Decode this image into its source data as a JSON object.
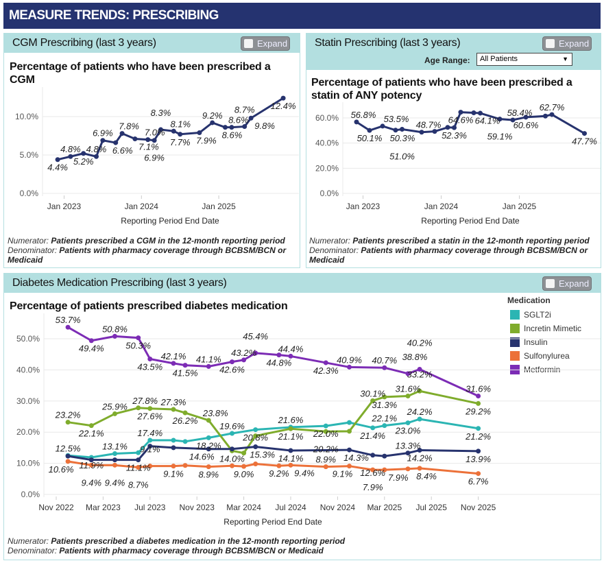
{
  "header": {
    "title": "MEASURE TRENDS: PRESCRIBING"
  },
  "cgm": {
    "panel_title": "CGM Prescribing (last 3 years)",
    "expand_label": "Expand",
    "chart_title": "Percentage of patients who have been prescribed a CGM",
    "footer": {
      "numerator_label": "Numerator:",
      "numerator_text": "Patients prescribed a CGM in the 12-month reporting period",
      "denominator_label": "Denominator:",
      "denominator_text": "Patients with pharmacy coverage through BCBSM/BCN or Medicaid"
    }
  },
  "statin": {
    "panel_title": "Statin Prescribing (last 3 years)",
    "expand_label": "Expand",
    "age_range_label": "Age Range:",
    "age_range_value": "All Patients",
    "chart_title": "Percentage of patients who have been prescribed a statin of ANY potency",
    "footer": {
      "numerator_label": "Numerator:",
      "numerator_text": "Patients prescribed a statin in the 12-month reporting period",
      "denominator_label": "Denominator:",
      "denominator_text": "Patients with pharmacy coverage through BCBSM/BCN or Medicaid"
    }
  },
  "diabetes": {
    "panel_title": "Diabetes Medication Prescribing (last 3 years)",
    "expand_label": "Expand",
    "chart_title": "Percentage of patients prescribed diabetes medication",
    "legend_title": "Medication",
    "footer": {
      "numerator_label": "Numerator:",
      "numerator_text": "Patients prescribed a diabetes medication in the 12-month reporting period",
      "denominator_label": "Denominator:",
      "denominator_text": "Patients with pharmacy coverage through BCBSM/BCN or Medicaid"
    }
  },
  "chart_data": [
    {
      "type": "line",
      "title": "Percentage of patients who have been prescribed a CGM",
      "xlabel": "Reporting Period End Date",
      "ylabel": "",
      "ylim": [
        0,
        13
      ],
      "grid": true,
      "y_ticks": [
        {
          "v": 0,
          "label": "0.0%"
        },
        {
          "v": 5,
          "label": "5.0%"
        },
        {
          "v": 10,
          "label": "10.0%"
        }
      ],
      "x_ticks": [
        {
          "date": "2023-01",
          "label": "Jan 2023"
        },
        {
          "date": "2024-01",
          "label": "Jan 2024"
        },
        {
          "date": "2025-01",
          "label": "Jan 2025"
        }
      ],
      "x": [
        "2022-12",
        "2023-02",
        "2023-04",
        "2023-06",
        "2023-07",
        "2023-09",
        "2023-10",
        "2023-12",
        "2024-02",
        "2024-03",
        "2024-04",
        "2024-06",
        "2024-07",
        "2024-10",
        "2024-12",
        "2025-02",
        "2025-03",
        "2025-05",
        "2025-06",
        "2025-11"
      ],
      "series": [
        {
          "color": "#27336e",
          "values": [
            4.4,
            4.8,
            5.2,
            4.8,
            6.9,
            6.6,
            7.8,
            7.1,
            7.0,
            6.9,
            8.3,
            8.1,
            7.7,
            7.9,
            9.2,
            8.6,
            8.6,
            8.7,
            9.8,
            12.4
          ],
          "labels": [
            "4.4%",
            "4.8%",
            "5.2%",
            "4.8%",
            "6.9%",
            "6.6%",
            "7.8%",
            "7.1%",
            "7.0%",
            "6.9%",
            "8.3%",
            "8.1%",
            "7.7%",
            "7.9%",
            "9.2%",
            "8.6%",
            "8.6%",
            "8.7%",
            "9.8%",
            "12.4%"
          ]
        }
      ]
    },
    {
      "type": "line",
      "title": "Percentage of patients who have been prescribed a statin of ANY potency",
      "xlabel": "Reporting Period End Date",
      "ylabel": "",
      "ylim": [
        0,
        68
      ],
      "grid": true,
      "y_ticks": [
        {
          "v": 0,
          "label": "0.0%"
        },
        {
          "v": 20,
          "label": "20.0%"
        },
        {
          "v": 40,
          "label": "40.0%"
        },
        {
          "v": 60,
          "label": "60.0%"
        }
      ],
      "x_ticks": [
        {
          "date": "2023-01",
          "label": "Jan 2023"
        },
        {
          "date": "2024-01",
          "label": "Jan 2024"
        },
        {
          "date": "2025-01",
          "label": "Jan 2025"
        }
      ],
      "x": [
        "2022-12",
        "2023-02",
        "2023-04",
        "2023-06",
        "2023-07",
        "2023-09",
        "2023-10",
        "2023-12",
        "2024-02",
        "2024-03",
        "2024-04",
        "2024-06",
        "2024-07",
        "2024-10",
        "2024-12",
        "2025-02",
        "2025-03",
        "2025-05",
        "2025-06",
        "2025-11"
      ],
      "series": [
        {
          "color": "#27336e",
          "values": [
            56.8,
            50.1,
            53.5,
            50.3,
            51.0,
            null,
            48.7,
            49.3,
            52.5,
            52.3,
            64.6,
            64.1,
            63.8,
            59.1,
            58.4,
            60.6,
            null,
            61.5,
            62.7,
            47.7
          ],
          "labels": [
            "56.8%",
            "50.1%",
            "53.5%",
            "50.3%",
            "51.0%",
            "",
            "48.7%",
            "",
            "",
            "52.3%",
            "64.6%",
            "64.1%",
            "",
            "59.1%",
            "58.4%",
            "60.6%",
            "",
            "",
            "62.7%",
            "47.7%"
          ]
        }
      ]
    },
    {
      "type": "line",
      "title": "Percentage of patients prescribed diabetes medication",
      "xlabel": "Reporting Period End Date",
      "ylabel": "",
      "ylim": [
        0,
        56
      ],
      "grid": true,
      "legend": "right",
      "y_ticks": [
        {
          "v": 0,
          "label": "0.0%"
        },
        {
          "v": 10,
          "label": "10.0%"
        },
        {
          "v": 20,
          "label": "20.0%"
        },
        {
          "v": 30,
          "label": "30.0%"
        },
        {
          "v": 40,
          "label": "40.0%"
        },
        {
          "v": 50,
          "label": "50.0%"
        }
      ],
      "x_ticks": [
        {
          "date": "2022-11",
          "label": "Nov 2022"
        },
        {
          "date": "2023-03",
          "label": "Mar 2023"
        },
        {
          "date": "2023-07",
          "label": "Jul 2023"
        },
        {
          "date": "2023-11",
          "label": "Nov 2023"
        },
        {
          "date": "2024-03",
          "label": "Mar 2024"
        },
        {
          "date": "2024-07",
          "label": "Jul 2024"
        },
        {
          "date": "2024-11",
          "label": "Nov 2024"
        },
        {
          "date": "2025-03",
          "label": "Mar 2025"
        },
        {
          "date": "2025-07",
          "label": "Jul 2025"
        },
        {
          "date": "2025-11",
          "label": "Nov 2025"
        }
      ],
      "x": [
        "2022-12",
        "2023-02",
        "2023-04",
        "2023-06",
        "2023-07",
        "2023-09",
        "2023-10",
        "2023-12",
        "2024-02",
        "2024-03",
        "2024-04",
        "2024-06",
        "2024-07",
        "2024-10",
        "2024-12",
        "2025-02",
        "2025-03",
        "2025-05",
        "2025-06",
        "2025-11"
      ],
      "series": [
        {
          "name": "SGLT2i",
          "color": "#2bb5b3",
          "values": [
            12.5,
            11.9,
            13.1,
            13.4,
            17.4,
            17.4,
            17.0,
            18.2,
            19.6,
            null,
            20.8,
            null,
            21.6,
            22.0,
            23.1,
            21.4,
            22.1,
            23.0,
            24.2,
            21.2
          ],
          "labels": [
            "12.5%",
            "11.9%",
            "13.1%",
            "",
            "17.4%",
            "",
            "",
            "18.2%",
            "19.6%",
            "",
            "20.8%",
            "",
            "21.6%",
            "22.0%",
            "",
            "21.4%",
            "22.1%",
            "23.0%",
            "24.2%",
            "21.2%"
          ]
        },
        {
          "name": "Incretin Mimetic",
          "color": "#7fac2c",
          "values": [
            23.2,
            22.1,
            25.9,
            27.8,
            27.6,
            27.3,
            26.2,
            23.8,
            14.0,
            13.3,
            18.8,
            null,
            21.1,
            20.2,
            20.3,
            30.1,
            31.3,
            31.6,
            33.2,
            29.2
          ],
          "labels": [
            "23.2%",
            "22.1%",
            "25.9%",
            "27.8%",
            "27.6%",
            "27.3%",
            "26.2%",
            "23.8%",
            "14.0%",
            "",
            "",
            "",
            "21.1%",
            "20.2%",
            "",
            "30.1%",
            "31.3%",
            "31.6%",
            "33.2%",
            "29.2%"
          ]
        },
        {
          "name": "Insulin",
          "color": "#27336e",
          "values": [
            12.3,
            11.1,
            11.1,
            11.1,
            15.5,
            15.0,
            null,
            14.6,
            14.6,
            null,
            15.3,
            null,
            14.1,
            null,
            14.3,
            12.6,
            12.3,
            13.3,
            14.2,
            13.9
          ],
          "labels": [
            "",
            "",
            "",
            "11.1%",
            "",
            "",
            "",
            "14.6%",
            "",
            "",
            "15.3%",
            "",
            "14.1%",
            "",
            "14.3%",
            "12.6%",
            "",
            "13.3%",
            "14.2%",
            "13.9%"
          ]
        },
        {
          "name": "Sulfonylurea",
          "color": "#ec7139",
          "values": [
            10.6,
            9.4,
            9.4,
            8.7,
            9.1,
            9.1,
            9.3,
            8.9,
            9.2,
            9.0,
            9.8,
            9.2,
            9.4,
            8.9,
            9.1,
            7.9,
            7.9,
            8.2,
            8.4,
            6.7
          ],
          "labels": [
            "10.6%",
            "9.4%",
            "9.4%",
            "8.7%",
            "9.1%",
            "9.1%",
            "",
            "8.9%",
            "",
            "9.0%",
            "",
            "9.2%",
            "9.4%",
            "8.9%",
            "9.1%",
            "7.9%",
            "7.9%",
            "",
            "8.4%",
            "6.7%"
          ]
        },
        {
          "name": "Metformin",
          "color": "#7c2cb5",
          "values": [
            53.7,
            49.4,
            50.8,
            50.3,
            43.5,
            42.1,
            41.5,
            41.1,
            42.6,
            43.2,
            45.4,
            44.8,
            44.4,
            42.3,
            40.9,
            null,
            40.7,
            38.8,
            40.2,
            31.6
          ],
          "labels": [
            "53.7%",
            "49.4%",
            "50.8%",
            "50.3%",
            "43.5%",
            "42.1%",
            "41.5%",
            "41.1%",
            "42.6%",
            "43.2%",
            "45.4%",
            "44.8%",
            "44.4%",
            "42.3%",
            "40.9%",
            "",
            "40.7%",
            "38.8%",
            "40.2%",
            "31.6%"
          ]
        }
      ]
    }
  ]
}
